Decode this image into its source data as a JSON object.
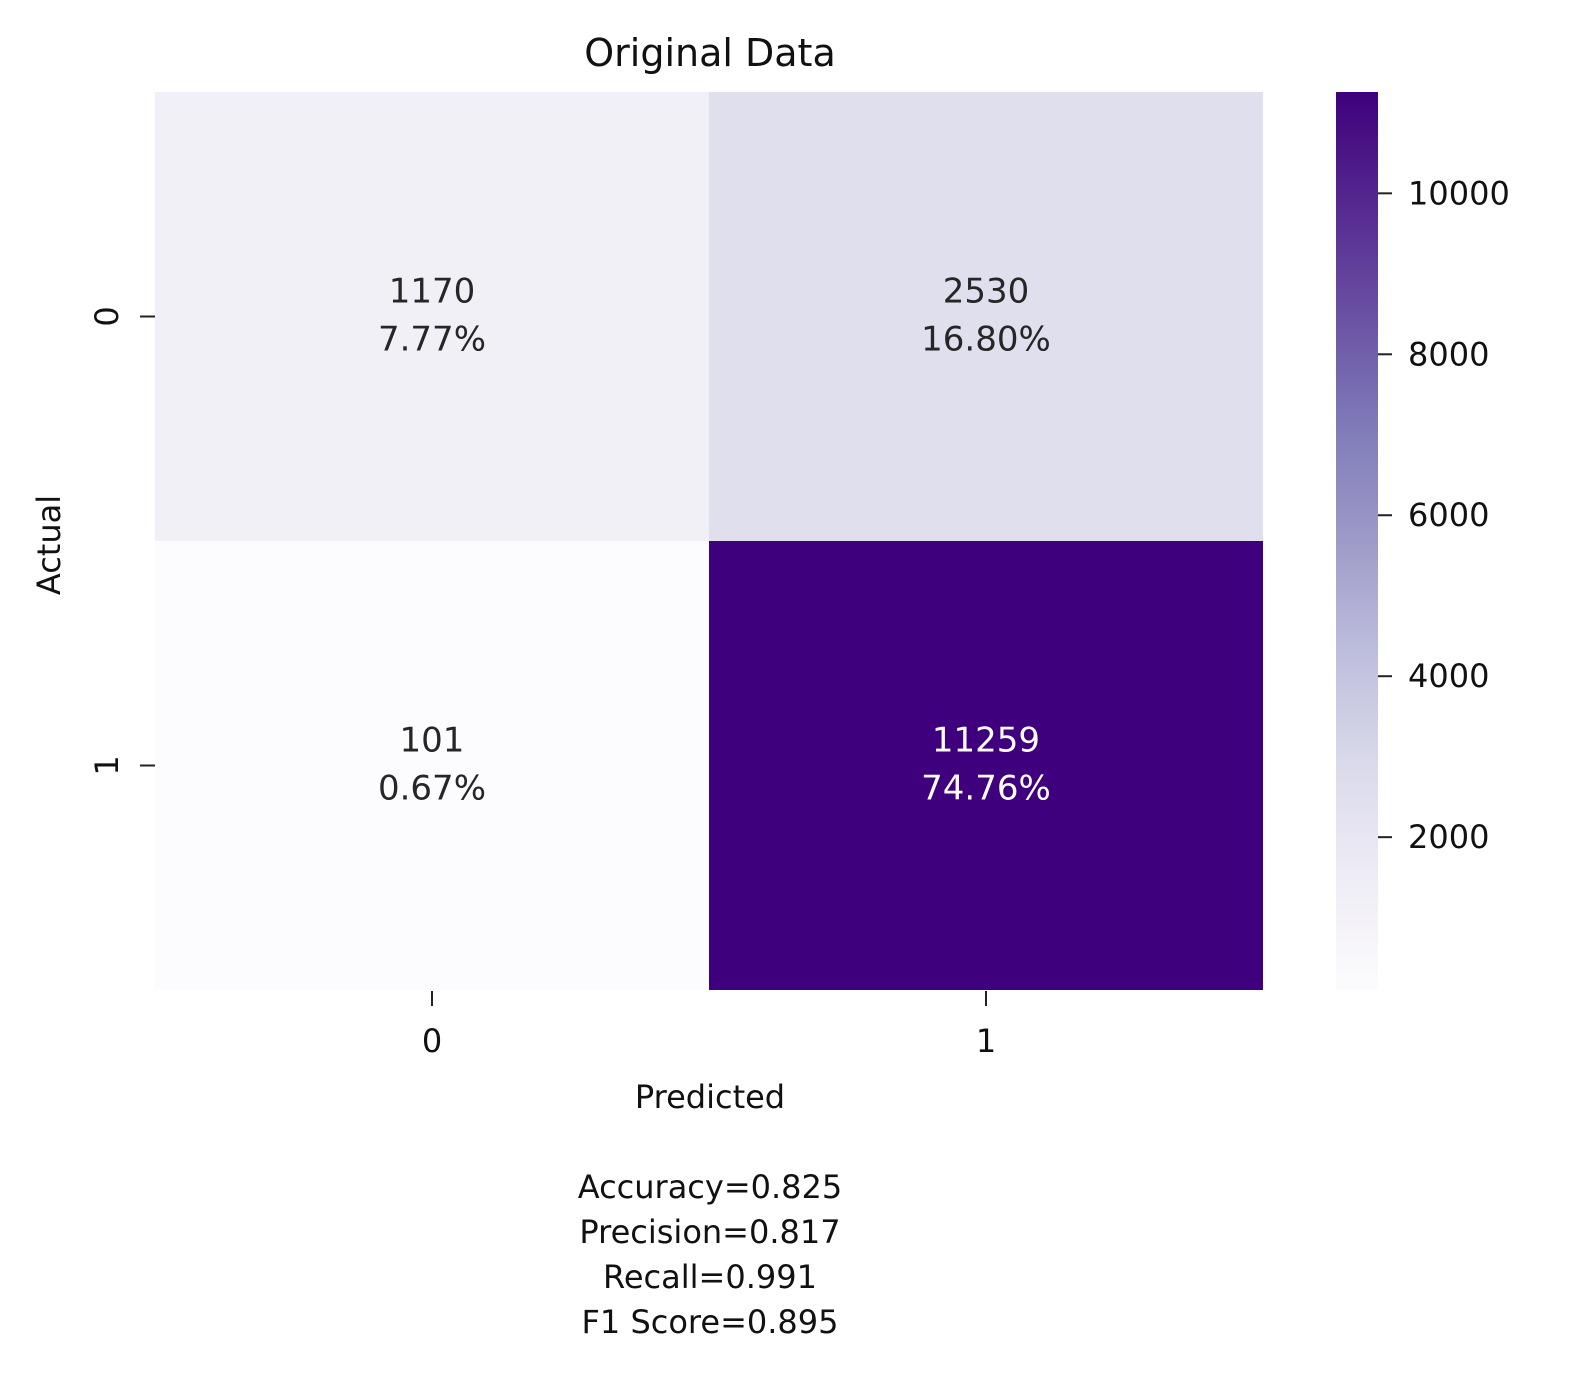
{
  "chart_data": {
    "type": "heatmap",
    "title": "Original Data",
    "xlabel": "Predicted",
    "ylabel": "Actual",
    "x_categories": [
      "0",
      "1"
    ],
    "y_categories": [
      "0",
      "1"
    ],
    "cells": [
      [
        {
          "count": 1170,
          "count_label": "1170",
          "percent_label": "7.77%"
        },
        {
          "count": 2530,
          "count_label": "2530",
          "percent_label": "16.80%"
        }
      ],
      [
        {
          "count": 101,
          "count_label": "101",
          "percent_label": "0.67%"
        },
        {
          "count": 11259,
          "count_label": "11259",
          "percent_label": "74.76%"
        }
      ]
    ],
    "colorbar": {
      "ticks": [
        2000,
        4000,
        6000,
        8000,
        10000
      ],
      "tick_labels": [
        "2000",
        "4000",
        "6000",
        "8000",
        "10000"
      ],
      "range": [
        101,
        11259
      ],
      "colormap": "Purples"
    },
    "grid": false,
    "legend": "colorbar-right"
  },
  "metrics": [
    "Accuracy=0.825",
    "Precision=0.817",
    "Recall=0.991",
    "F1 Score=0.895"
  ]
}
